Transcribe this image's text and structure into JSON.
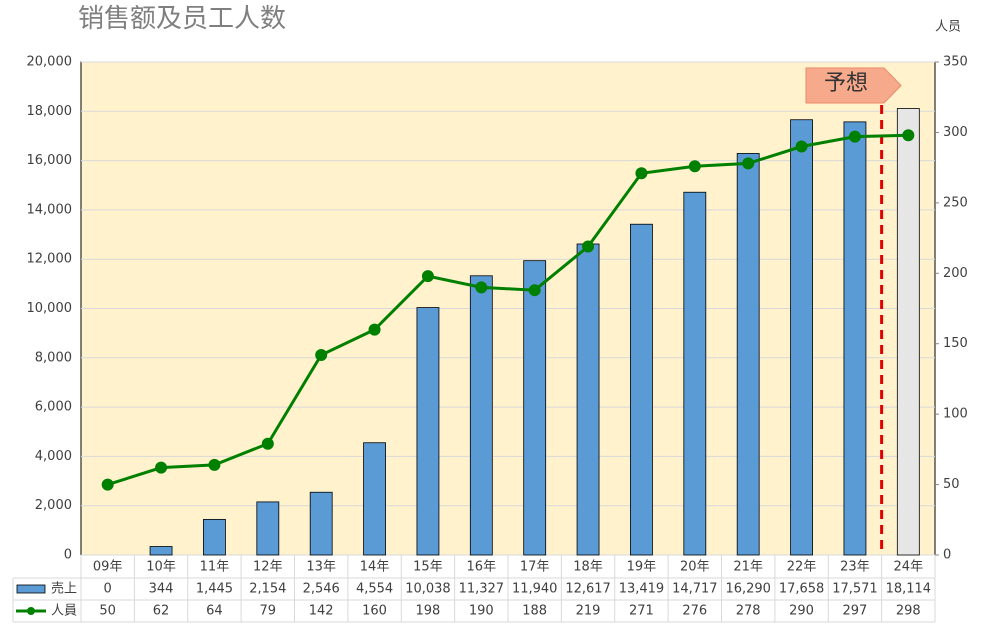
{
  "chart_data": {
    "type": "bar-line-table",
    "title": "销售额及员工人数",
    "y2_label": "人员",
    "categories": [
      "09年",
      "10年",
      "11年",
      "12年",
      "13年",
      "14年",
      "15年",
      "16年",
      "17年",
      "18年",
      "19年",
      "20年",
      "21年",
      "22年",
      "23年",
      "24年"
    ],
    "series": [
      {
        "name": "売上",
        "color": "#5b9bd5",
        "values": [
          0,
          344,
          1445,
          2154,
          2546,
          4554,
          10038,
          11327,
          11940,
          12617,
          13419,
          14717,
          16290,
          17658,
          17571,
          18114
        ],
        "value_labels": [
          "0",
          "344",
          "1,445",
          "2,154",
          "2,546",
          "4,554",
          "10,038",
          "11,327",
          "11,940",
          "12,617",
          "13,419",
          "14,717",
          "16,290",
          "17,658",
          "17,571",
          "18,114"
        ]
      },
      {
        "name": "人員",
        "color": "#008000",
        "axis": "y2",
        "values": [
          50,
          62,
          64,
          79,
          142,
          160,
          198,
          190,
          188,
          219,
          271,
          276,
          278,
          290,
          297,
          298
        ]
      }
    ],
    "forecast": {
      "label": "予想",
      "category": "24年",
      "color": "#e7e6e6",
      "line_color": "#e00000"
    },
    "ylim": [
      0,
      20000
    ],
    "yticks": [
      {
        "value": 0,
        "label": "0"
      },
      {
        "value": 2000,
        "label": "2,000"
      },
      {
        "value": 4000,
        "label": "4,000"
      },
      {
        "value": 6000,
        "label": "6,000"
      },
      {
        "value": 8000,
        "label": "8,000"
      },
      {
        "value": 10000,
        "label": "10,000"
      },
      {
        "value": 12000,
        "label": "12,000"
      },
      {
        "value": 14000,
        "label": "14,000"
      },
      {
        "value": 16000,
        "label": "16,000"
      },
      {
        "value": 18000,
        "label": "18,000"
      },
      {
        "value": 20000,
        "label": "20,000"
      }
    ],
    "y2lim": [
      0,
      350
    ],
    "y2ticks": [
      0,
      50,
      100,
      150,
      200,
      250,
      300,
      350
    ],
    "grid": true,
    "plot_background": "#fff2cc"
  }
}
